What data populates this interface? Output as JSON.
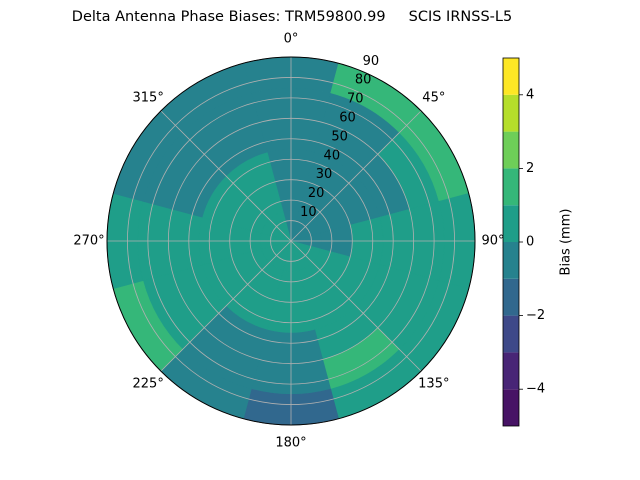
{
  "chart_data": {
    "type": "polar_contour",
    "title": "Delta Antenna Phase Biases: TRM59800.99     SCIS IRNSS-L5",
    "azimuth": [
      0,
      30,
      60,
      90,
      120,
      150,
      180,
      210,
      240,
      270,
      300,
      330
    ],
    "zenith_edges": [
      0,
      15,
      30,
      45,
      60,
      75,
      90
    ],
    "values": [
      [
        -0.4,
        -0.4,
        -0.4,
        -0.3,
        -0.2,
        -0.3
      ],
      [
        -0.4,
        -0.4,
        -0.4,
        -0.3,
        -0.2,
        1.4
      ],
      [
        -0.4,
        -0.4,
        -0.4,
        -0.3,
        0.4,
        1.4
      ],
      [
        -0.4,
        -0.3,
        0.4,
        0.4,
        0.4,
        0.4
      ],
      [
        0.4,
        0.4,
        0.4,
        0.4,
        0.6,
        0.5
      ],
      [
        0.4,
        0.4,
        0.4,
        0.4,
        1.2,
        0.5
      ],
      [
        0.3,
        0.3,
        0.3,
        -0.3,
        -0.6,
        -1.3
      ],
      [
        0.4,
        0.4,
        0.4,
        -0.3,
        -0.5,
        -0.6
      ],
      [
        0.5,
        0.5,
        0.5,
        0.5,
        0.5,
        1.3
      ],
      [
        0.5,
        0.5,
        0.5,
        0.5,
        0.5,
        0.3
      ],
      [
        0.4,
        0.4,
        0.4,
        -0.3,
        -0.4,
        -0.5
      ],
      [
        0.4,
        0.4,
        0.4,
        -0.3,
        -0.4,
        -0.5
      ]
    ],
    "rlim": [
      0,
      90
    ],
    "rticks": [
      10,
      20,
      30,
      40,
      50,
      60,
      70,
      80,
      90
    ],
    "theta_ticks": [
      {
        "value": 0,
        "label": "0°"
      },
      {
        "value": 45,
        "label": "45°"
      },
      {
        "value": 90,
        "label": "90°"
      },
      {
        "value": 135,
        "label": "135°"
      },
      {
        "value": 180,
        "label": "180°"
      },
      {
        "value": 225,
        "label": "225°"
      },
      {
        "value": 270,
        "label": "270°"
      },
      {
        "value": 315,
        "label": "315°"
      }
    ],
    "grid": true,
    "levels": [
      -5,
      -4,
      -3,
      -2,
      -1,
      0,
      1,
      2,
      3,
      4,
      5
    ],
    "colors": [
      "#471365",
      "#482576",
      "#3e4989",
      "#31688e",
      "#26828e",
      "#1f9e89",
      "#35b779",
      "#6ece58",
      "#b5de2b",
      "#fde725"
    ],
    "clim": [
      -5,
      5
    ],
    "cticks": [
      {
        "value": -4,
        "label": "−4"
      },
      {
        "value": -2,
        "label": "−2"
      },
      0,
      2,
      4
    ],
    "colorbar_label": "Bias (mm)"
  }
}
